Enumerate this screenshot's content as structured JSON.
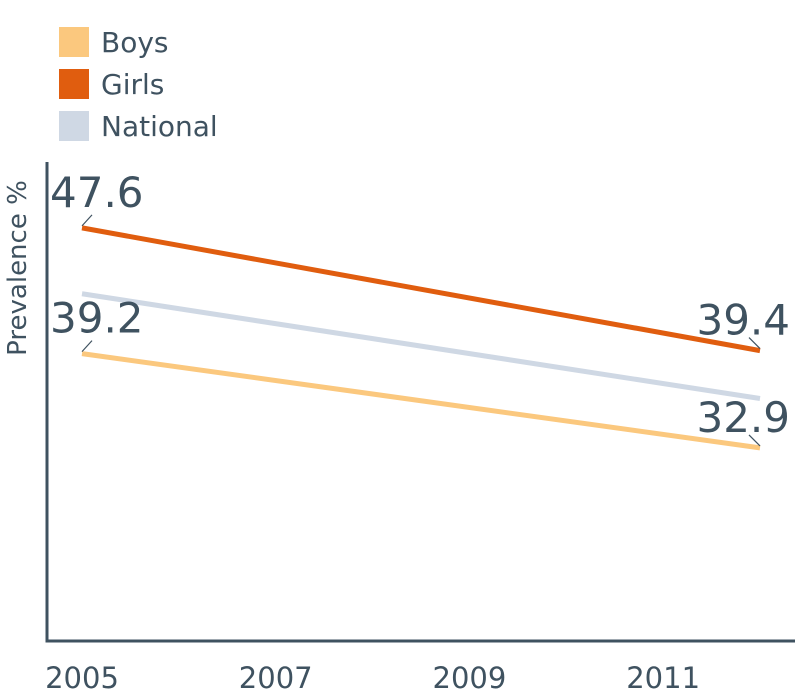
{
  "chart_data": {
    "type": "line",
    "ylabel": "Prevalence %",
    "xlabel": "",
    "x_ticks": [
      "2005",
      "2007",
      "2009",
      "2011"
    ],
    "x_range": [
      2005,
      2012
    ],
    "y_range": [
      20,
      52
    ],
    "grid": false,
    "legend_placement": "top-left",
    "series": [
      {
        "name": "Boys",
        "color": "#fbc87e",
        "x": [
          2005,
          2012
        ],
        "y": [
          39.2,
          32.9
        ],
        "labels": [
          "39.2",
          "32.9"
        ]
      },
      {
        "name": "Girls",
        "color": "#e05d0f",
        "x": [
          2005,
          2012
        ],
        "y": [
          47.6,
          39.4
        ],
        "labels": [
          "47.6",
          "39.4"
        ]
      },
      {
        "name": "National",
        "color": "#cfd8e4",
        "x": [
          2005,
          2012
        ],
        "y": [
          43.2,
          36.2
        ],
        "labels": []
      }
    ]
  }
}
